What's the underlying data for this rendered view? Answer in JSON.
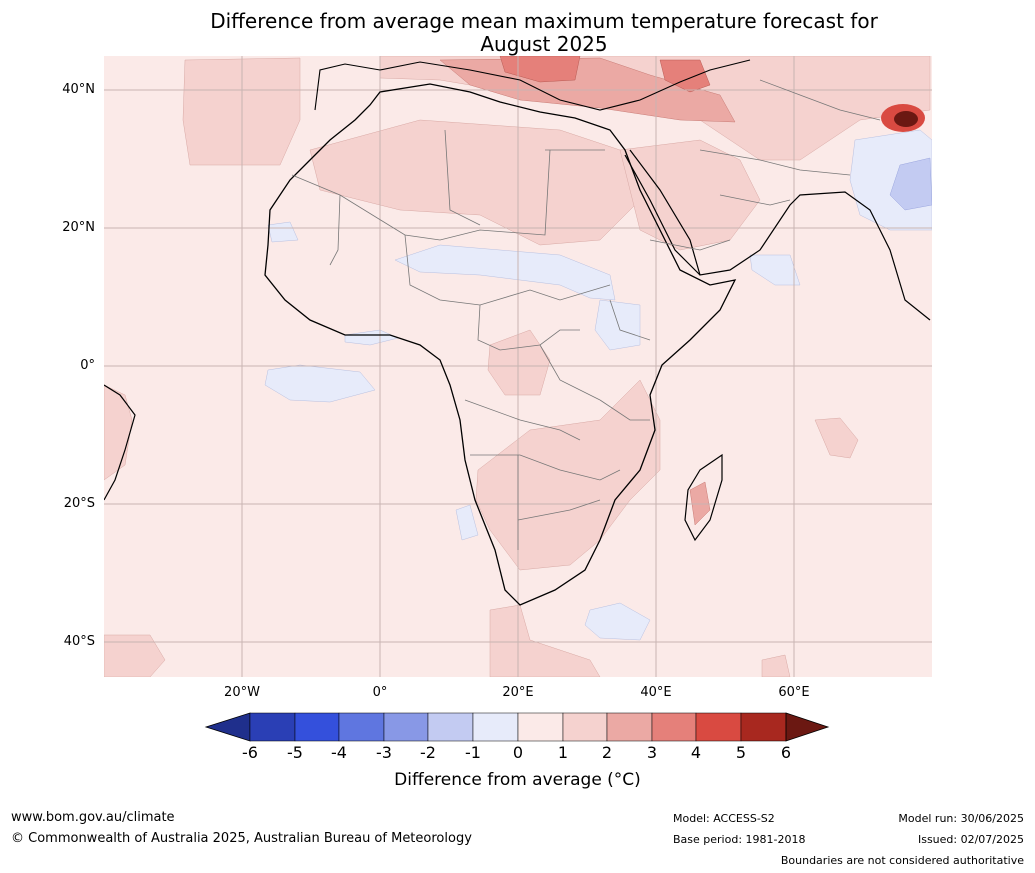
{
  "title_line1": "Difference from average mean maximum temperature forecast for",
  "title_line2": "August 2025",
  "lat_labels": [
    "40°N",
    "20°N",
    "0°",
    "20°S",
    "40°S"
  ],
  "lon_labels": [
    "20°W",
    "0°",
    "20°E",
    "40°E",
    "60°E"
  ],
  "colorbar": {
    "ticks": [
      "-6",
      "-5",
      "-4",
      "-3",
      "-2",
      "-1",
      "0",
      "1",
      "2",
      "3",
      "4",
      "5",
      "6"
    ],
    "label": "Difference from average ($^\\circ$C)",
    "label_display": "Difference from average (°C)",
    "colors": [
      "#1f2f8c",
      "#2a3fb5",
      "#3450dc",
      "#5f76e0",
      "#8898e6",
      "#c3cbf2",
      "#e7ebfa",
      "#fbeae8",
      "#f5d2cf",
      "#eba9a4",
      "#e5807a",
      "#d94a41",
      "#a8281f",
      "#6b1812"
    ]
  },
  "footer": {
    "website": "www.bom.gov.au/climate",
    "copyright": "© Commonwealth of Australia 2025, Australian Bureau of Meteorology",
    "model": "Model: ACCESS-S2",
    "base_period": "Base period: 1981-2018",
    "model_run": "Model run: 30/06/2025",
    "issued": "Issued: 02/07/2025",
    "disclaimer": "Boundaries are not considered authoritative"
  }
}
